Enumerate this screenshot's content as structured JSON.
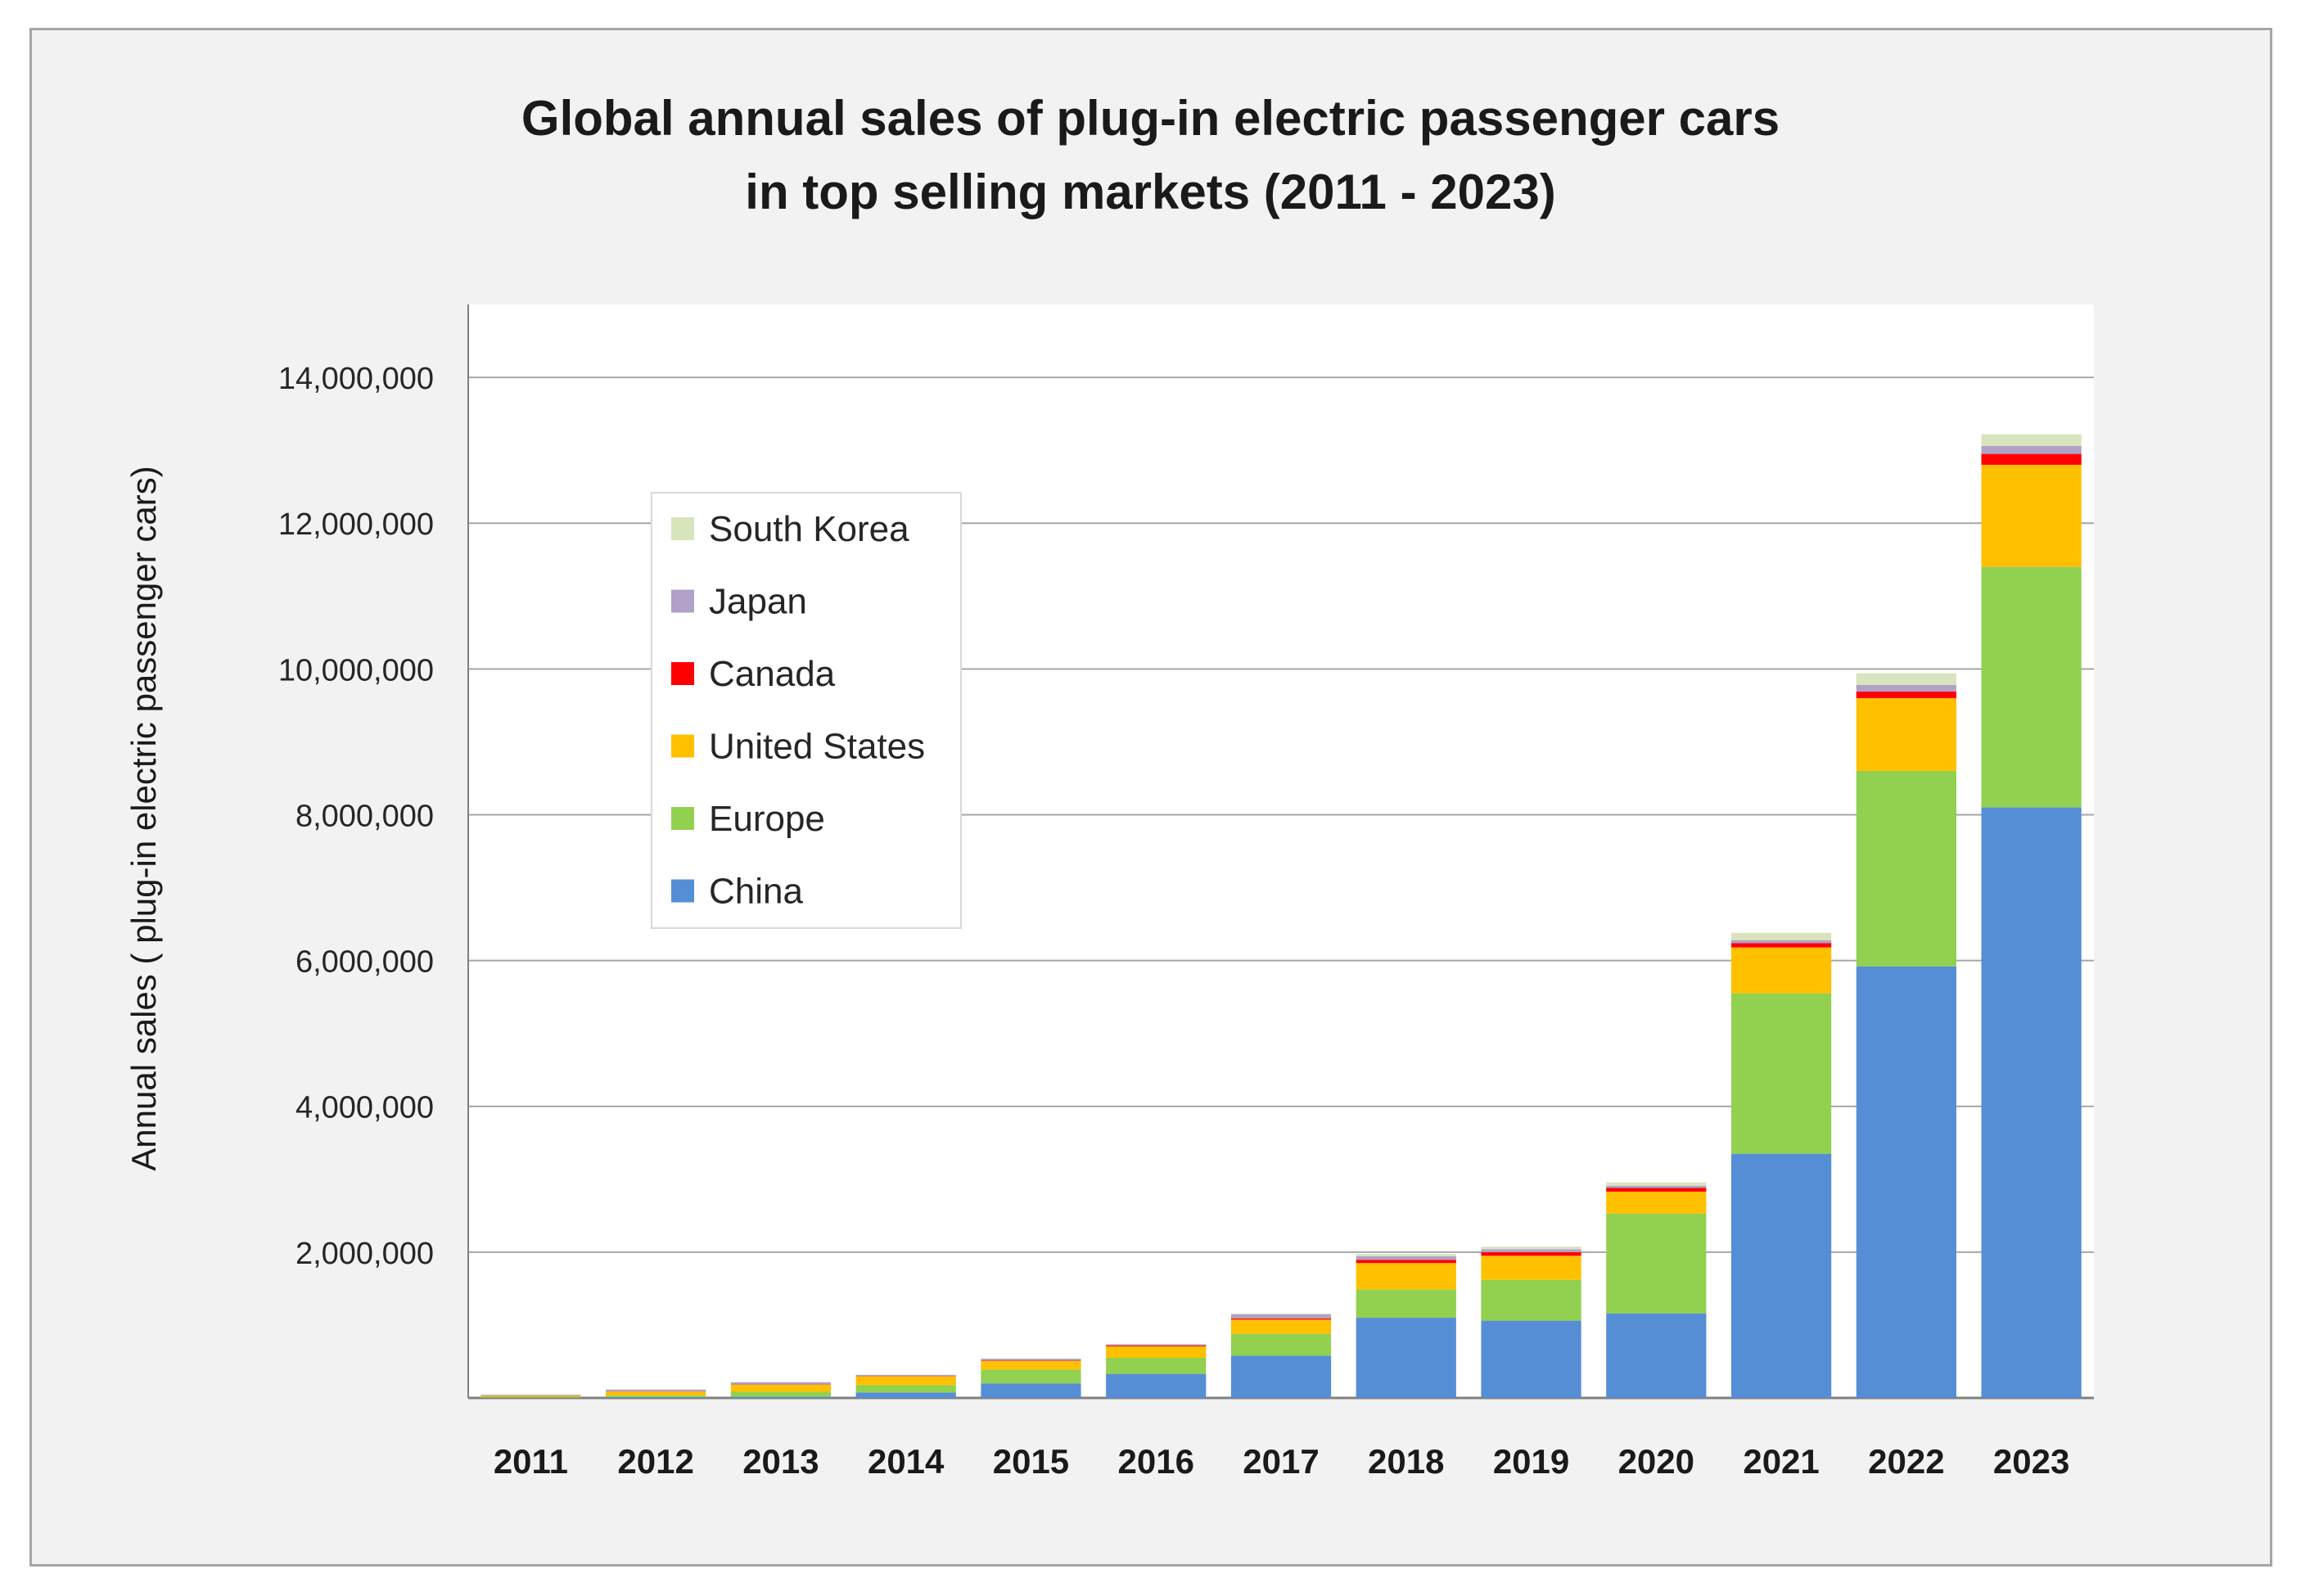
{
  "chart_data": {
    "type": "bar",
    "stacked": true,
    "title": [
      "Global annual sales of plug-in electric passenger cars",
      "in top selling markets (2011 - 2023)"
    ],
    "xlabel": "",
    "ylabel": "Annual sales ( plug-in electric passenger cars)",
    "ylim": [
      0,
      15000000
    ],
    "yticks": [
      2000000,
      4000000,
      6000000,
      8000000,
      10000000,
      12000000,
      14000000
    ],
    "ytick_labels": [
      "2,000,000",
      "4,000,000",
      "6,000,000",
      "8,000,000",
      "10,000,000",
      "12,000,000",
      "14,000,000"
    ],
    "grid": true,
    "legend_position": "upper-left inside plot",
    "categories": [
      "2011",
      "2012",
      "2013",
      "2014",
      "2015",
      "2016",
      "2017",
      "2018",
      "2019",
      "2020",
      "2021",
      "2022",
      "2023"
    ],
    "series": [
      {
        "name": "China",
        "color": "#558ed5",
        "values": [
          5000,
          10000,
          15000,
          75000,
          200000,
          330000,
          580000,
          1100000,
          1060000,
          1160000,
          3350000,
          5920000,
          8100000
        ]
      },
      {
        "name": "Europe",
        "color": "#92d050",
        "values": [
          10000,
          25000,
          70000,
          100000,
          190000,
          220000,
          300000,
          390000,
          560000,
          1370000,
          2200000,
          2680000,
          3300000
        ]
      },
      {
        "name": "United States",
        "color": "#ffc000",
        "values": [
          18000,
          53000,
          97000,
          120000,
          116000,
          158000,
          195000,
          360000,
          330000,
          300000,
          630000,
          1000000,
          1400000
        ]
      },
      {
        "name": "Canada",
        "color": "#ff0000",
        "values": [
          500,
          2000,
          3000,
          5000,
          7000,
          12000,
          16000,
          45000,
          50000,
          50000,
          60000,
          90000,
          150000
        ]
      },
      {
        "name": "Japan",
        "color": "#b1a0c7",
        "values": [
          10000,
          25000,
          30000,
          16000,
          25000,
          15000,
          54000,
          50000,
          40000,
          30000,
          40000,
          90000,
          110000
        ]
      },
      {
        "name": "South Korea",
        "color": "#d8e4bc",
        "values": [
          300,
          500,
          800,
          1000,
          3000,
          5000,
          14000,
          30000,
          35000,
          45000,
          100000,
          160000,
          160000
        ]
      }
    ]
  }
}
